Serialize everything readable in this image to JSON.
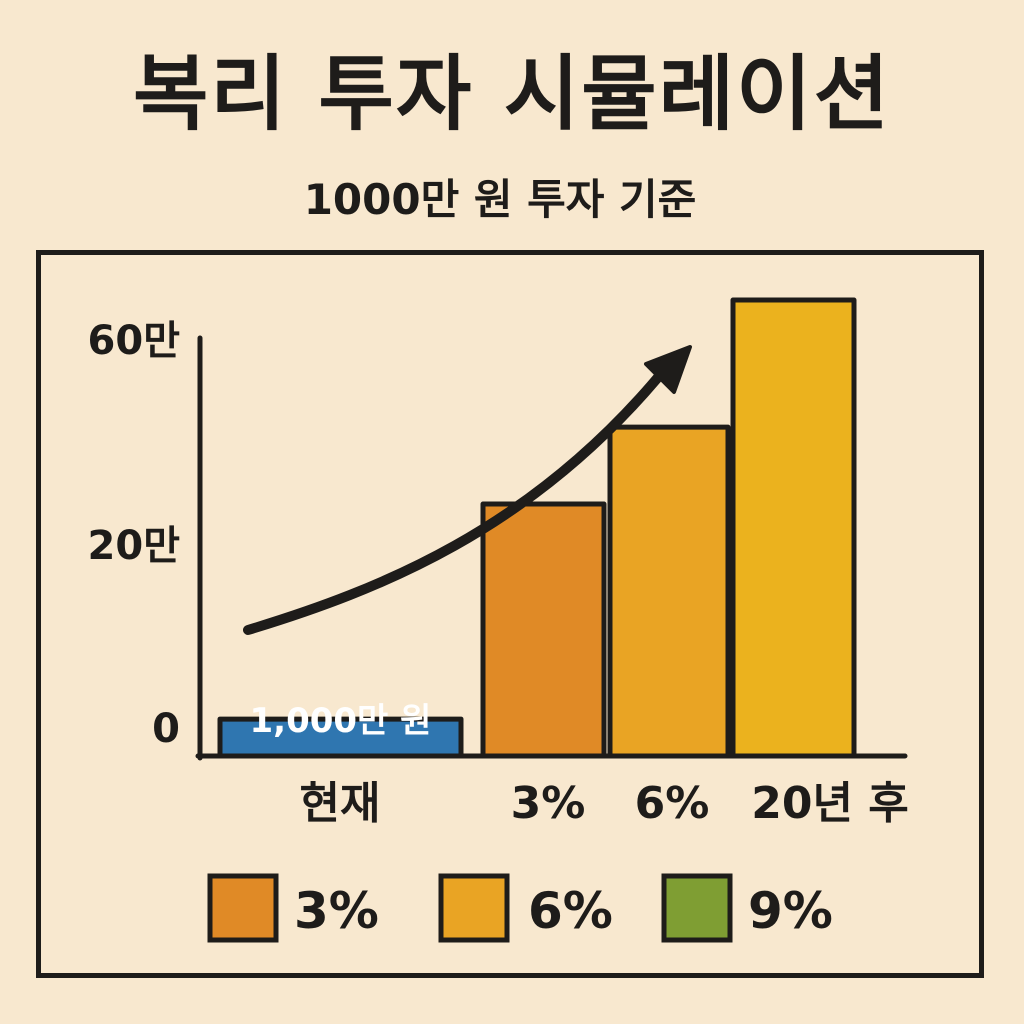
{
  "title": "복리 투자 시뮬레이션",
  "subtitle": "1000만 원 투자 기준",
  "colors": {
    "background": "#f8e8cf",
    "ink": "#1e1c1a",
    "current": "#2f76b0",
    "rate_3": "#e08a26",
    "rate_6": "#e9a424",
    "rate_9": "#7f9e33",
    "tall_bar": "#ebb21e"
  },
  "chart_data": {
    "type": "bar",
    "title": "복리 투자 시뮬레이션",
    "subtitle": "1000만 원 투자 기준",
    "y_ticks": [
      {
        "label": "0",
        "value": 0
      },
      {
        "label": "20만",
        "value": 20
      },
      {
        "label": "60만",
        "value": 60
      }
    ],
    "bars": [
      {
        "group": "현재",
        "label": "1,000만 원",
        "value": 3.5,
        "color": "#2f76b0"
      },
      {
        "group": "3%",
        "value": 28,
        "color": "#e08a26"
      },
      {
        "group": "6%",
        "value": 43,
        "color": "#e9a424"
      },
      {
        "group": "20년 후",
        "value": 68,
        "color": "#ebb21e"
      }
    ],
    "x_labels": [
      "현재",
      "3%",
      "6%",
      "20년 후"
    ],
    "legend": [
      {
        "label": "3%",
        "color": "#e08a26"
      },
      {
        "label": "6%",
        "color": "#e9a424"
      },
      {
        "label": "9%",
        "color": "#7f9e33"
      }
    ],
    "legend_position": "bottom",
    "trend_arrow": true,
    "grid": false
  }
}
